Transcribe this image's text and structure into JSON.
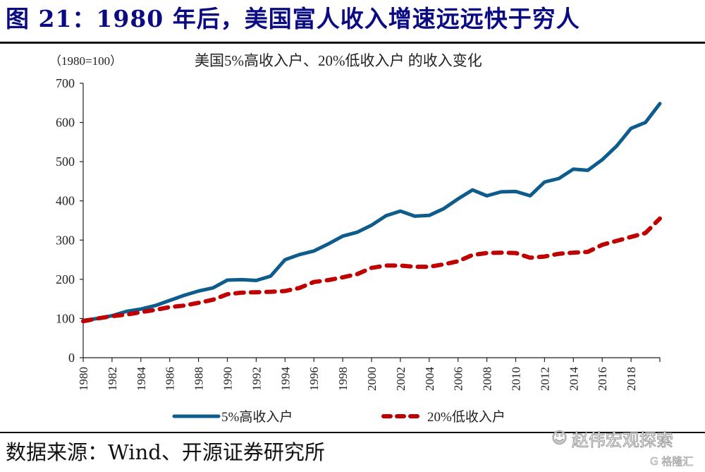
{
  "figure": {
    "title": "图 21：1980 年后，美国富人收入增速远远快于穷人",
    "source": "数据来源：Wind、开源证券研究所",
    "watermark": "赵伟宏观探索",
    "watermark_icon": "wechat-icon",
    "watermark2": "G 格隆汇"
  },
  "chart_data": {
    "type": "line",
    "title": "美国5%高收入户、20%低收入户 的收入变化",
    "unit_label": "（1980=100）",
    "xlabel": "",
    "ylabel": "",
    "ylim": [
      0,
      700
    ],
    "yticks": [
      0,
      100,
      200,
      300,
      400,
      500,
      600,
      700
    ],
    "xlim": [
      1980,
      2020
    ],
    "xticks": [
      1980,
      1982,
      1984,
      1986,
      1988,
      1990,
      1992,
      1994,
      1996,
      1998,
      2000,
      2002,
      2004,
      2006,
      2008,
      2010,
      2012,
      2014,
      2016,
      2018
    ],
    "grid": false,
    "legend_position": "bottom",
    "x": [
      1980,
      1981,
      1982,
      1983,
      1984,
      1985,
      1986,
      1987,
      1988,
      1989,
      1990,
      1991,
      1992,
      1993,
      1994,
      1995,
      1996,
      1997,
      1998,
      1999,
      2000,
      2001,
      2002,
      2003,
      2004,
      2005,
      2006,
      2007,
      2008,
      2009,
      2010,
      2011,
      2012,
      2013,
      2014,
      2015,
      2016,
      2017,
      2018,
      2019,
      2020
    ],
    "series": [
      {
        "name": "5%高收入户",
        "color": "#0e5c8c",
        "style": "solid",
        "values": [
          95,
          100,
          107,
          118,
          124,
          133,
          146,
          159,
          170,
          178,
          198,
          199,
          197,
          208,
          250,
          263,
          272,
          290,
          310,
          320,
          338,
          362,
          374,
          361,
          363,
          380,
          405,
          428,
          413,
          423,
          424,
          413,
          448,
          457,
          481,
          478,
          505,
          540,
          585,
          600,
          648
        ]
      },
      {
        "name": "20%低收入户",
        "color": "#c00000",
        "style": "dashed",
        "values": [
          93,
          100,
          106,
          110,
          116,
          122,
          129,
          133,
          140,
          148,
          162,
          166,
          167,
          168,
          170,
          178,
          193,
          198,
          205,
          213,
          229,
          235,
          235,
          232,
          232,
          238,
          246,
          262,
          267,
          268,
          267,
          255,
          258,
          265,
          268,
          270,
          288,
          298,
          308,
          318,
          355
        ]
      }
    ]
  }
}
